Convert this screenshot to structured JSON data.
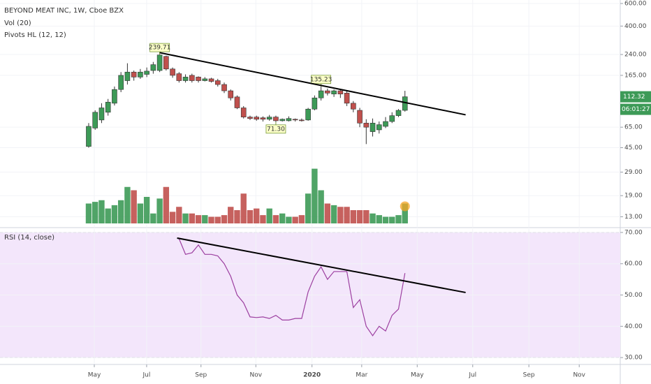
{
  "chart_data": [
    {
      "type": "candlestick",
      "title": "BEYOND MEAT INC, 1W, Cboe BZX",
      "x": [
        0,
        1,
        2,
        3,
        4,
        5,
        6,
        7,
        8,
        9,
        10,
        11,
        12,
        13,
        14,
        15,
        16,
        17,
        18,
        19,
        20,
        21,
        22,
        23,
        24,
        25,
        26,
        27,
        28,
        29,
        30,
        31,
        32,
        33,
        34,
        35,
        36,
        37,
        38,
        39,
        40,
        41,
        42,
        43,
        44,
        45,
        46,
        47,
        48,
        49
      ],
      "open": [
        46,
        64,
        74,
        85,
        100,
        128,
        150,
        175,
        160,
        168,
        180,
        180,
        232,
        185,
        170,
        150,
        165,
        160,
        150,
        155,
        150,
        140,
        125,
        112,
        92,
        78,
        78,
        77,
        75,
        78,
        73,
        73,
        75,
        74,
        74,
        90,
        110,
        125,
        118,
        125,
        120,
        100,
        88,
        70,
        60,
        62,
        66,
        72,
        80,
        88
      ],
      "high": [
        70,
        88,
        100,
        108,
        135,
        175,
        205,
        180,
        185,
        190,
        210,
        239.71,
        235,
        190,
        175,
        168,
        170,
        162,
        160,
        158,
        155,
        145,
        128,
        115,
        95,
        80,
        80,
        79,
        81,
        80,
        76,
        79,
        76,
        76,
        92,
        115,
        135.23,
        130,
        128,
        128,
        125,
        104,
        92,
        75,
        76,
        72,
        78,
        85,
        90,
        125
      ],
      "low": [
        45,
        62,
        70,
        80,
        96,
        122,
        140,
        150,
        155,
        160,
        170,
        175,
        180,
        158,
        145,
        145,
        145,
        145,
        148,
        145,
        135,
        120,
        105,
        90,
        76,
        74,
        73,
        72,
        73,
        71.3,
        72,
        72,
        72,
        72,
        73,
        88,
        105,
        115,
        112,
        110,
        95,
        85,
        65,
        48,
        55,
        58,
        64,
        70,
        78,
        86
      ],
      "close": [
        66,
        85,
        92,
        102,
        128,
        165,
        175,
        160,
        175,
        178,
        200,
        238,
        185,
        165,
        150,
        160,
        150,
        150,
        155,
        148,
        140,
        125,
        110,
        92,
        78,
        76,
        75,
        75,
        78,
        73,
        75,
        76,
        74,
        73,
        90,
        110,
        125,
        120,
        125,
        118,
        100,
        90,
        70,
        65,
        70,
        68,
        72,
        80,
        88,
        112.32
      ],
      "up_color": "#3d9a57",
      "down_color": "#c0504d",
      "xlim": [
        -13.74,
        82.36
      ],
      "ylim": [
        10.7,
        639
      ],
      "log_scale": true,
      "grid": true,
      "yticks": [
        {
          "value": 600,
          "label": "600.00"
        },
        {
          "value": 400,
          "label": "400.00"
        },
        {
          "value": 240,
          "label": "240.00"
        },
        {
          "value": 165,
          "label": "165.00"
        },
        {
          "value": 65,
          "label": "65.00"
        },
        {
          "value": 45,
          "label": "45.00"
        },
        {
          "value": 29,
          "label": "29.00"
        },
        {
          "value": 19,
          "label": "19.00"
        },
        {
          "value": 13,
          "label": "13.00"
        }
      ],
      "volume": {
        "name": "Vol (20)",
        "ylim": [
          0,
          40
        ],
        "values": [
          12,
          13,
          14,
          9,
          11,
          14,
          22,
          20,
          12,
          16,
          6,
          15,
          22,
          7,
          10,
          6,
          6,
          5,
          5,
          4,
          4,
          5,
          10,
          8,
          18,
          8,
          9,
          5,
          9,
          5,
          6,
          4,
          4,
          5,
          18,
          33,
          20,
          12,
          11,
          10,
          10,
          8,
          8,
          8,
          6,
          5,
          4,
          4,
          5,
          12
        ]
      },
      "pivots": {
        "name": "Pivots HL (12, 12)",
        "points": [
          {
            "x": 11,
            "value": 239.71,
            "label": "239.71"
          },
          {
            "x": 36,
            "value": 135.23,
            "label": "135.23"
          },
          {
            "x": 29,
            "value": 71.3,
            "label": "71.30"
          }
        ]
      },
      "trendline": {
        "x": [
          11,
          58.4
        ],
        "y": [
          248,
          81.2
        ],
        "color": "#000000"
      },
      "countdown": "06:01:27"
    },
    {
      "type": "line",
      "title": "RSI (14, close)",
      "x": [
        0,
        1,
        2,
        3,
        4,
        5,
        6,
        7,
        8,
        9,
        10,
        11,
        12,
        13,
        14,
        15,
        16,
        17,
        18,
        19,
        20,
        21,
        22,
        23,
        24,
        25,
        26,
        27,
        28,
        29,
        30,
        31,
        32,
        33,
        34,
        35,
        36,
        37,
        38,
        39,
        40,
        41,
        42,
        43,
        44,
        45,
        46,
        47,
        48,
        49
      ],
      "values": [
        null,
        null,
        null,
        null,
        null,
        null,
        null,
        null,
        null,
        null,
        null,
        null,
        null,
        null,
        68,
        63,
        63.5,
        66,
        63,
        63,
        62.5,
        60,
        56,
        50,
        47.5,
        43,
        42.8,
        43,
        42.5,
        43.5,
        42,
        42,
        42.5,
        42.5,
        51,
        56,
        59,
        55,
        57.5,
        57.5,
        57.5,
        46,
        48.5,
        40,
        37,
        40,
        38.5,
        43.5,
        45.5,
        57
      ],
      "color": "#9c3fa0",
      "band": [
        30,
        70
      ],
      "band_color": "#f3e6fb",
      "xlim": [
        -13.74,
        82.36
      ],
      "ylim": [
        27.8,
        71.1
      ],
      "grid": true,
      "yticks": [
        {
          "value": 70,
          "label": "70.00"
        },
        {
          "value": 60,
          "label": "60.00"
        },
        {
          "value": 50,
          "label": "50.00"
        },
        {
          "value": 40,
          "label": "40.00"
        },
        {
          "value": 30,
          "label": "30.00"
        }
      ],
      "xticks": [
        {
          "value": 0.87,
          "label": "May"
        },
        {
          "value": 8.98,
          "label": "Jul"
        },
        {
          "value": 17.4,
          "label": "Sep"
        },
        {
          "value": 25.9,
          "label": "Nov"
        },
        {
          "value": 34.6,
          "label": "2020"
        },
        {
          "value": 42.3,
          "label": "Mar"
        },
        {
          "value": 50.9,
          "label": "May"
        },
        {
          "value": 59.5,
          "label": "Jul"
        },
        {
          "value": 68.2,
          "label": "Sep"
        },
        {
          "value": 76.0,
          "label": "Nov"
        }
      ],
      "trendline": {
        "x": [
          13.7,
          58.4
        ],
        "y": [
          68.2,
          50.8
        ],
        "color": "#000000"
      }
    }
  ]
}
